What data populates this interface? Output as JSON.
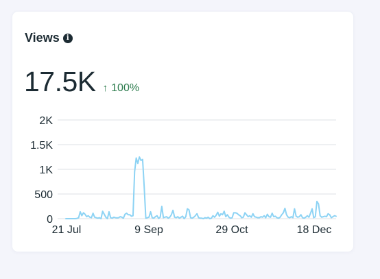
{
  "card": {
    "title": "Views",
    "metric": "17.5K",
    "delta": "100%",
    "info_icon": "info-icon",
    "delta_icon": "arrow-up-icon",
    "delta_color": "#2e7d4f",
    "line_color": "#8dd3f4"
  },
  "chart_data": {
    "type": "line",
    "title": "",
    "xlabel": "",
    "ylabel": "",
    "ylim": [
      0,
      2000
    ],
    "y_ticks": [
      {
        "value": 0,
        "label": "0"
      },
      {
        "value": 500,
        "label": "500"
      },
      {
        "value": 1000,
        "label": "1K"
      },
      {
        "value": 1500,
        "label": "1.5K"
      },
      {
        "value": 2000,
        "label": "2K"
      }
    ],
    "x_ticks": [
      "21 Jul",
      "9 Sep",
      "29 Oct",
      "18 Dec"
    ],
    "grid": true,
    "series": [
      {
        "values": [
          0,
          0,
          0,
          0,
          0,
          0,
          0,
          5,
          20,
          140,
          60,
          120,
          90,
          40,
          60,
          30,
          20,
          110,
          30,
          20,
          10,
          20,
          0,
          150,
          90,
          30,
          0,
          140,
          20,
          10,
          30,
          20,
          15,
          20,
          40,
          30,
          10,
          90,
          110,
          80,
          80,
          50,
          60,
          950,
          1230,
          1120,
          1250,
          1180,
          1200,
          640,
          10,
          20,
          30,
          140,
          20,
          10,
          40,
          60,
          5,
          30,
          250,
          20,
          30,
          40,
          10,
          30,
          80,
          170,
          30,
          20,
          40,
          10,
          30,
          50,
          0,
          40,
          200,
          180,
          20,
          10,
          30,
          60,
          100,
          20,
          10,
          10,
          0,
          20,
          10,
          30,
          0,
          10,
          60,
          30,
          70,
          130,
          50,
          100,
          80,
          150,
          40,
          80,
          30,
          10,
          20,
          120,
          120,
          110,
          80,
          60,
          20,
          30,
          120,
          80,
          40,
          60,
          30,
          100,
          40,
          30,
          20,
          20,
          40,
          30,
          60,
          20,
          90,
          40,
          30,
          110,
          40,
          50,
          20,
          10,
          30,
          80,
          120,
          210,
          80,
          30,
          20,
          40,
          20,
          200,
          50,
          30,
          40,
          80,
          20,
          10,
          30,
          60,
          30,
          110,
          200,
          20,
          40,
          350,
          300,
          60,
          30,
          40,
          50,
          40,
          100,
          80,
          20,
          40,
          60,
          50
        ]
      }
    ]
  }
}
